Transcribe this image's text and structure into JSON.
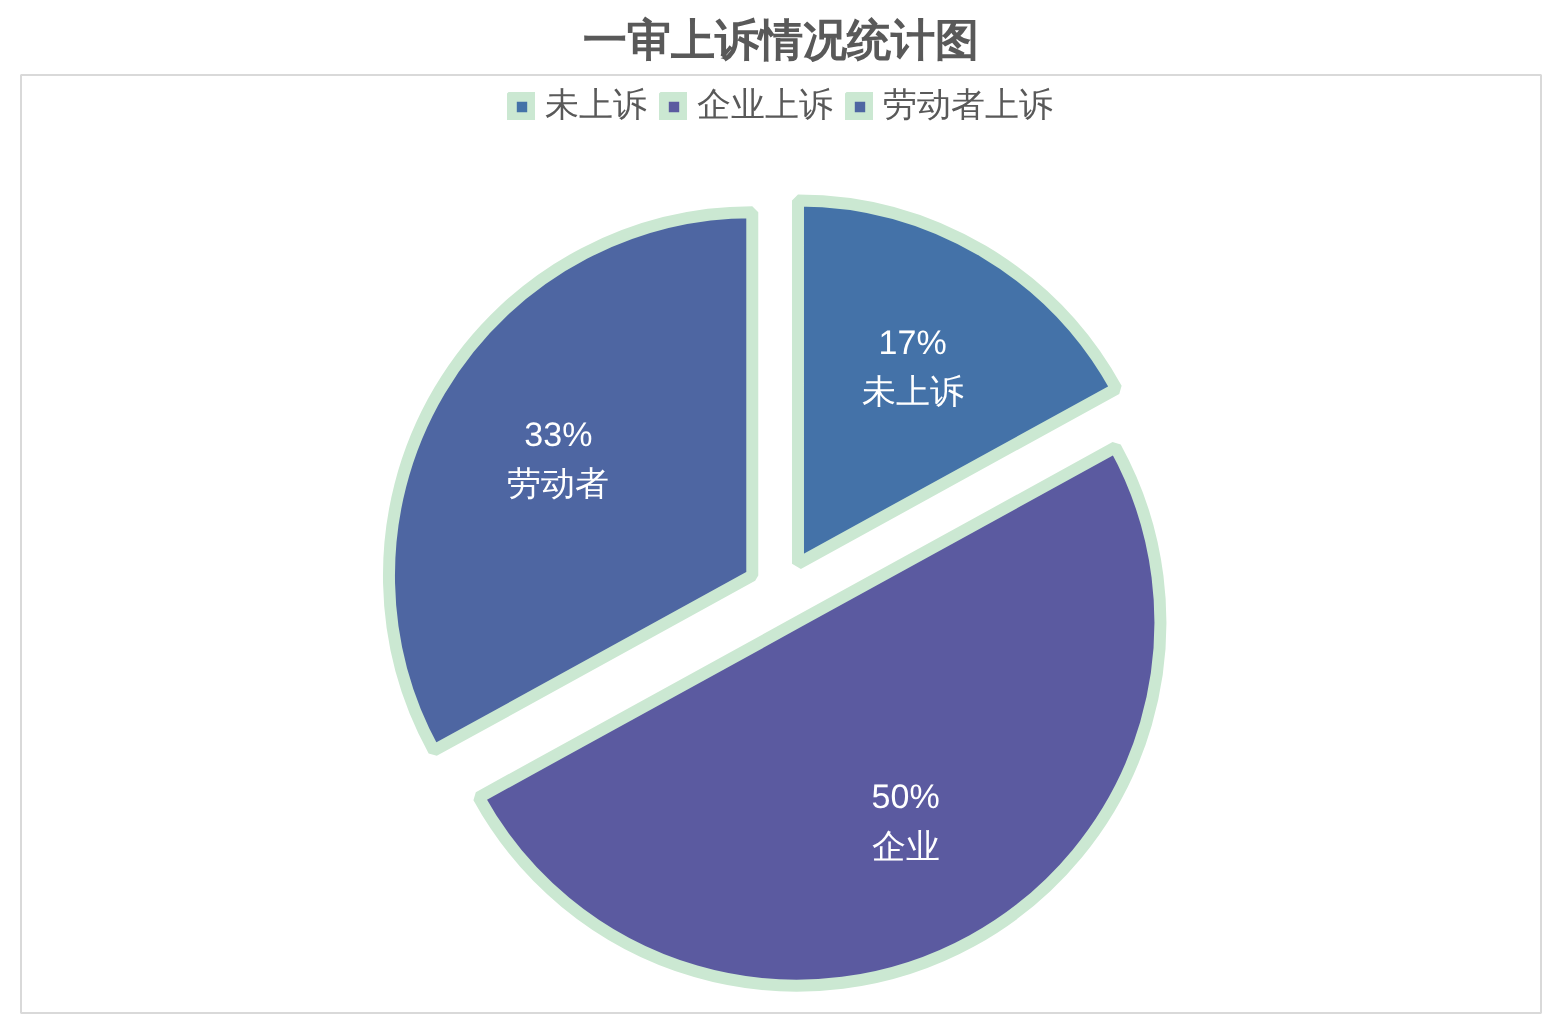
{
  "chart_data": {
    "type": "pie",
    "title": "一审上诉情况统计图",
    "categories": [
      "未上诉",
      "企业上诉",
      "劳动者上诉"
    ],
    "values": [
      17,
      50,
      33
    ],
    "colors": [
      "#4472a8",
      "#5b5aa0",
      "#4e66a2"
    ],
    "value_labels": [
      "17%\n未上诉",
      "50%\n企业",
      "33%\n劳动者"
    ],
    "legend": "top"
  }
}
